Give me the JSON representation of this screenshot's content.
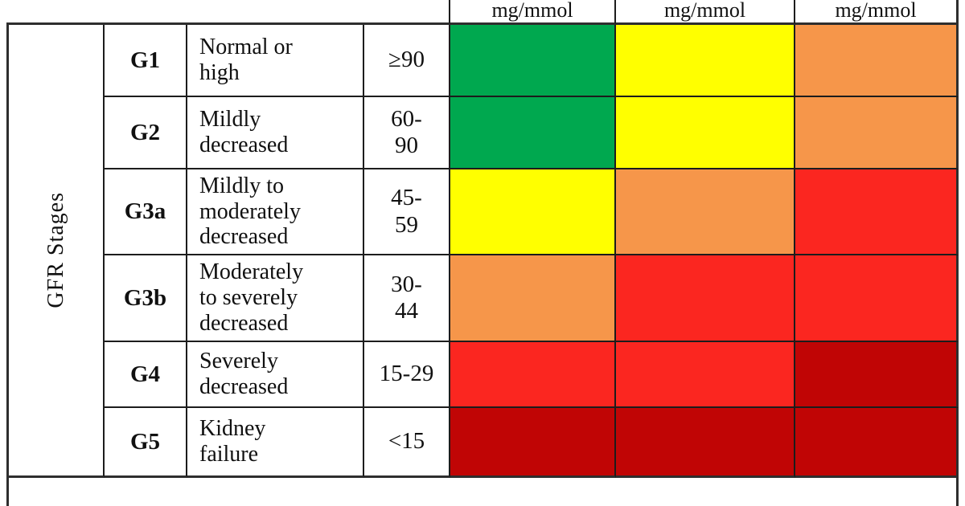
{
  "palette": {
    "green": "#00a84f",
    "yellow": "#ffff00",
    "orange": "#f6964a",
    "red": "#fb2620",
    "darkred": "#c00505"
  },
  "header": {
    "col1": "mg/mmol",
    "col2": "mg/mmol",
    "col3": "mg/mmol"
  },
  "row_axis_label": "GFR Stages",
  "rows": [
    {
      "code": "G1",
      "description": "Normal or\nhigh",
      "range": "≥90",
      "colors": [
        "green",
        "yellow",
        "orange"
      ]
    },
    {
      "code": "G2",
      "description": "Mildly\ndecreased",
      "range": "60-\n90",
      "colors": [
        "green",
        "yellow",
        "orange"
      ]
    },
    {
      "code": "G3a",
      "description": "Mildly to\nmoderately\ndecreased",
      "range": "45-\n59",
      "colors": [
        "yellow",
        "orange",
        "red"
      ]
    },
    {
      "code": "G3b",
      "description": "Moderately\nto severely\ndecreased",
      "range": "30-\n44",
      "colors": [
        "orange",
        "red",
        "red"
      ]
    },
    {
      "code": "G4",
      "description": "Severely\ndecreased",
      "range": "15-29",
      "colors": [
        "red",
        "red",
        "darkred"
      ]
    },
    {
      "code": "G5",
      "description": "Kidney\nfailure",
      "range": "<15",
      "colors": [
        "darkred",
        "darkred",
        "darkred"
      ]
    }
  ],
  "chart_data": {
    "type": "heatmap",
    "title": "",
    "row_axis_label": "GFR Stages",
    "column_headers": [
      "mg/mmol",
      "mg/mmol",
      "mg/mmol"
    ],
    "legend_position": "none",
    "grid": true,
    "rows": [
      {
        "stage": "G1",
        "label": "Normal or high",
        "gfr_range": "≥90",
        "cell_colors": [
          "green",
          "yellow",
          "orange"
        ]
      },
      {
        "stage": "G2",
        "label": "Mildly decreased",
        "gfr_range": "60-90",
        "cell_colors": [
          "green",
          "yellow",
          "orange"
        ]
      },
      {
        "stage": "G3a",
        "label": "Mildly to moderately decreased",
        "gfr_range": "45-59",
        "cell_colors": [
          "yellow",
          "orange",
          "red"
        ]
      },
      {
        "stage": "G3b",
        "label": "Moderately to severely decreased",
        "gfr_range": "30-44",
        "cell_colors": [
          "orange",
          "red",
          "red"
        ]
      },
      {
        "stage": "G4",
        "label": "Severely decreased",
        "gfr_range": "15-29",
        "cell_colors": [
          "red",
          "red",
          "darkred"
        ]
      },
      {
        "stage": "G5",
        "label": "Kidney failure",
        "gfr_range": "<15",
        "cell_colors": [
          "darkred",
          "darkred",
          "darkred"
        ]
      }
    ],
    "color_hex": {
      "green": "#00a84f",
      "yellow": "#ffff00",
      "orange": "#f6964a",
      "red": "#fb2620",
      "darkred": "#c00505"
    }
  }
}
